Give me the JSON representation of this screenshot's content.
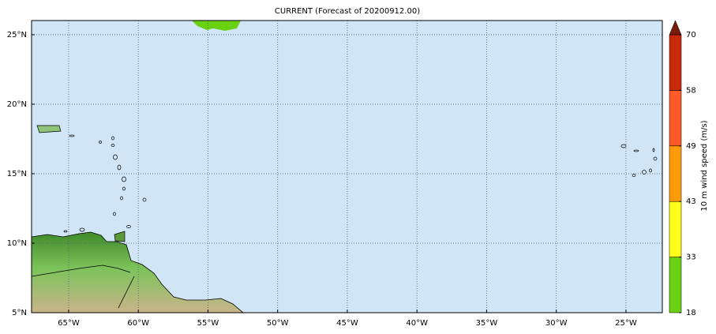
{
  "map": {
    "title": "CURRENT (Forecast of 20200912.00)",
    "xlim": [
      -67.66,
      -22.39
    ],
    "ylim": [
      5,
      26.02
    ],
    "xticks": [
      {
        "value": -65,
        "label": "65°W"
      },
      {
        "value": -60,
        "label": "60°W"
      },
      {
        "value": -55,
        "label": "55°W"
      },
      {
        "value": -50,
        "label": "50°W"
      },
      {
        "value": -45,
        "label": "45°W"
      },
      {
        "value": -40,
        "label": "40°W"
      },
      {
        "value": -35,
        "label": "35°W"
      },
      {
        "value": -30,
        "label": "30°W"
      },
      {
        "value": -25,
        "label": "25°W"
      }
    ],
    "yticks": [
      {
        "value": 5,
        "label": "5°N"
      },
      {
        "value": 10,
        "label": "10°N"
      },
      {
        "value": 15,
        "label": "15°N"
      },
      {
        "value": 20,
        "label": "20°N"
      },
      {
        "value": 25,
        "label": "25°N"
      }
    ],
    "grid": true,
    "colorbar": {
      "label": "10 m wind speed (m/s)",
      "levels": [
        18,
        33,
        43,
        49,
        58,
        70
      ],
      "colors": [
        "#6ad012",
        "#ffff1a",
        "#ff9a0a",
        "#ff5a28",
        "#c82a0a"
      ],
      "extend_color": "#7a1a0a"
    }
  }
}
